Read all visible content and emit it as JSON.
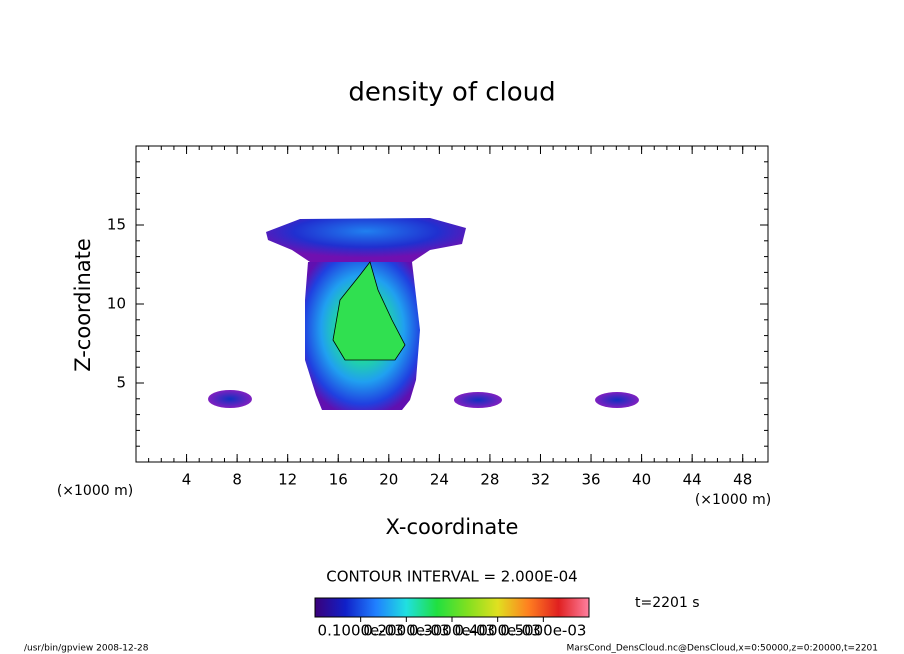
{
  "chart_data": {
    "type": "contour",
    "title": "density of cloud",
    "xlabel": "X-coordinate",
    "ylabel": "Z-coordinate",
    "x_unit": "(×1000 m)",
    "xlim": [
      0,
      50
    ],
    "ylim": [
      0,
      20
    ],
    "xticks": [
      4,
      8,
      12,
      16,
      20,
      24,
      28,
      32,
      36,
      40,
      44,
      48
    ],
    "yticks": [
      5,
      10,
      15
    ],
    "contour_interval": "CONTOUR INTERVAL = 2.000E-04",
    "time": "t=2201 s",
    "colorbar": {
      "colors": [
        "#3a007a",
        "#1020c8",
        "#2080ff",
        "#20e0e0",
        "#20e040",
        "#80e020",
        "#e0e020",
        "#ff8020",
        "#e02020",
        "#ff80a0"
      ],
      "clim": [
        0,
        0.0006
      ],
      "ticks": [
        {
          "value": 0.0001,
          "label": "0.1000e-03"
        },
        {
          "value": 0.0002,
          "label": "0.2000e-03"
        },
        {
          "value": 0.0003,
          "label": "0.3000e-03"
        },
        {
          "value": 0.0004,
          "label": "0.4000e-03"
        },
        {
          "value": 0.0005,
          "label": "0.5000e-03"
        }
      ]
    },
    "footer_left": "/usr/bin/gpview  2008-12-28",
    "footer_right": "MarsCond_DensCloud.nc@DensCloud,x=0:50000,z=0:20000,t=2201"
  }
}
